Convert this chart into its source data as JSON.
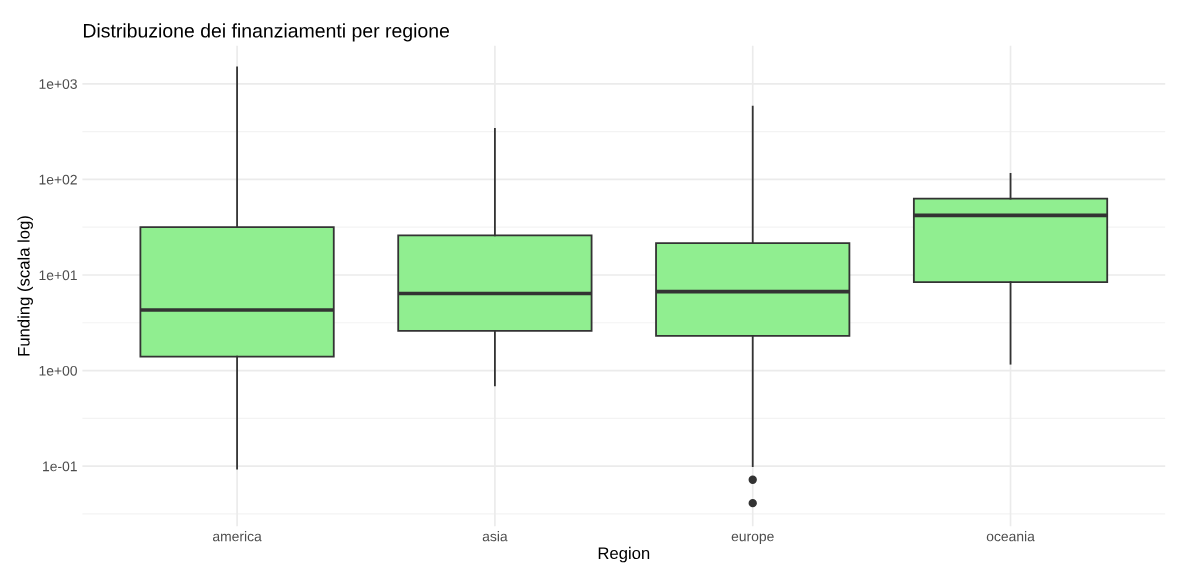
{
  "chart_data": {
    "type": "box",
    "title": "Distribuzione dei finanziamenti per regione",
    "xlabel": "Region",
    "ylabel": "Funding (scala log)",
    "categories": [
      "america",
      "asia",
      "europe",
      "oceania"
    ],
    "boxes": [
      {
        "low": 0.094,
        "q1": 1.4,
        "median": 4.3,
        "q3": 31.6,
        "high": 1480
      },
      {
        "low": 0.7,
        "q1": 2.6,
        "median": 6.4,
        "q3": 26,
        "high": 338
      },
      {
        "low": 0.1,
        "q1": 2.3,
        "median": 6.7,
        "q3": 21.5,
        "high": 575,
        "outliers": [
          0.072,
          0.041
        ]
      },
      {
        "low": 1.18,
        "q1": 8.4,
        "median": 42,
        "q3": 63,
        "high": 114
      }
    ],
    "color": "#90ee90",
    "log": true,
    "ylim": [
      0.0235,
      2500
    ],
    "yticks": [
      {
        "value": 0.1,
        "label": "1e-01"
      },
      {
        "value": 1,
        "label": "1e+00"
      },
      {
        "value": 10,
        "label": "1e+01"
      },
      {
        "value": 100,
        "label": "1e+02"
      },
      {
        "value": 1000,
        "label": "1e+03"
      }
    ],
    "grid": true
  }
}
